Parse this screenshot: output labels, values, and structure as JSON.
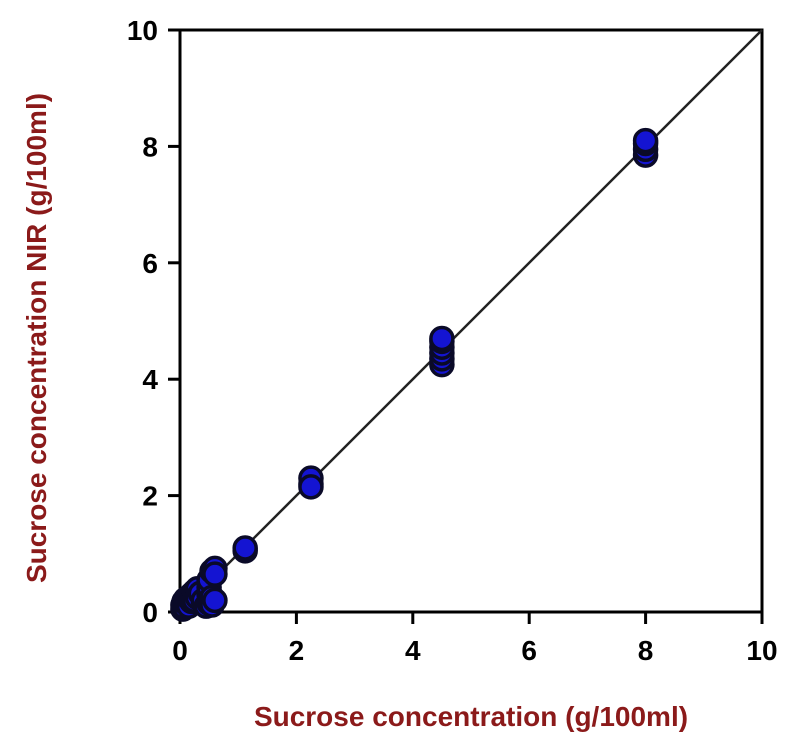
{
  "chart_data": {
    "type": "scatter",
    "title": "",
    "xlabel": "Sucrose concentration (g/100ml)",
    "ylabel": "Sucrose concentration NIR (g/100ml)",
    "xlim": [
      0,
      10
    ],
    "ylim": [
      0,
      10
    ],
    "xticks": [
      "0",
      "2",
      "4",
      "6",
      "8",
      "10"
    ],
    "yticks": [
      "0",
      "2",
      "4",
      "6",
      "8",
      "10"
    ],
    "grid": false,
    "legend": "none",
    "reference_line": {
      "from": [
        0,
        0
      ],
      "to": [
        10,
        10
      ]
    },
    "series": [
      {
        "points": [
          [
            0.05,
            0.05
          ],
          [
            0.05,
            0.12
          ],
          [
            0.07,
            0.18
          ],
          [
            0.08,
            0.08
          ],
          [
            0.1,
            0.15
          ],
          [
            0.1,
            0.22
          ],
          [
            0.15,
            0.1
          ],
          [
            0.15,
            0.25
          ],
          [
            0.2,
            0.3
          ],
          [
            0.2,
            0.18
          ],
          [
            0.25,
            0.35
          ],
          [
            0.25,
            0.2
          ],
          [
            0.3,
            0.4
          ],
          [
            0.3,
            0.25
          ],
          [
            0.35,
            0.32
          ],
          [
            0.4,
            0.2
          ],
          [
            0.45,
            0.1
          ],
          [
            0.5,
            0.3
          ],
          [
            0.5,
            0.15
          ],
          [
            0.5,
            0.42
          ],
          [
            0.5,
            0.55
          ],
          [
            0.55,
            0.7
          ],
          [
            0.55,
            0.25
          ],
          [
            0.55,
            0.12
          ],
          [
            0.6,
            0.75
          ],
          [
            0.6,
            0.65
          ],
          [
            0.6,
            0.2
          ],
          [
            1.12,
            1.05
          ],
          [
            1.12,
            1.1
          ],
          [
            2.25,
            2.2
          ],
          [
            2.25,
            2.3
          ],
          [
            2.25,
            2.15
          ],
          [
            4.5,
            4.25
          ],
          [
            4.5,
            4.35
          ],
          [
            4.5,
            4.45
          ],
          [
            4.5,
            4.55
          ],
          [
            4.5,
            4.65
          ],
          [
            4.5,
            4.7
          ],
          [
            8.0,
            7.85
          ],
          [
            8.0,
            7.95
          ],
          [
            8.0,
            8.05
          ],
          [
            8.0,
            8.1
          ]
        ]
      }
    ],
    "colors": {
      "marker_fill": "#1414d2",
      "marker_stroke": "#0a0a28",
      "line": "#222222",
      "axis": "#000000",
      "label": "#8b1a1a"
    }
  }
}
